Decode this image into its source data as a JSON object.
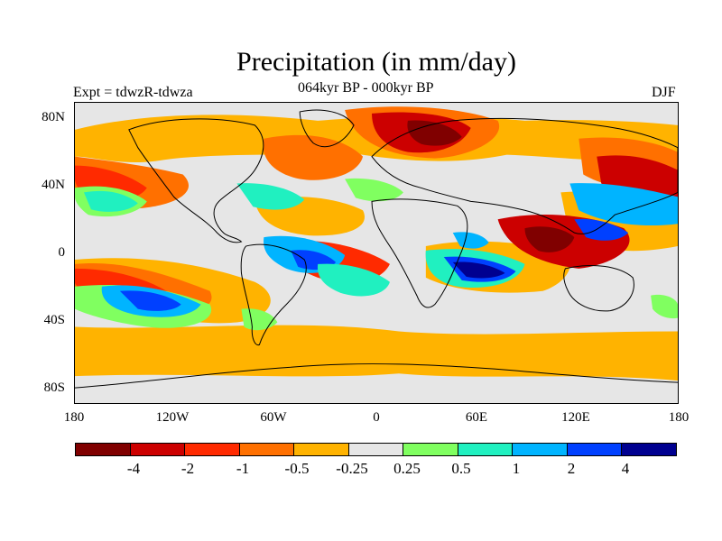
{
  "title": "Precipitation (in mm/day)",
  "left_label": "Expt = tdwzR-tdwza",
  "center_label": "064kyr BP - 000kyr BP",
  "right_label": "DJF",
  "y_ticks": [
    "80N",
    "40N",
    "0",
    "40S",
    "80S"
  ],
  "x_ticks": [
    "180",
    "120W",
    "60W",
    "0",
    "60E",
    "120E",
    "180"
  ],
  "colorbar": {
    "colors": [
      "#800000",
      "#cc0000",
      "#ff2a00",
      "#ff7000",
      "#ffb300",
      "#e6e6e6",
      "#80ff60",
      "#20f0c0",
      "#00b4ff",
      "#0040ff",
      "#000090"
    ],
    "labels": [
      "-4",
      "-2",
      "-1",
      "-0.5",
      "-0.25",
      "0.25",
      "0.5",
      "1",
      "2",
      "4"
    ]
  },
  "map_layers": {
    "background": "#e6e6e6",
    "coastline": "#000000"
  }
}
